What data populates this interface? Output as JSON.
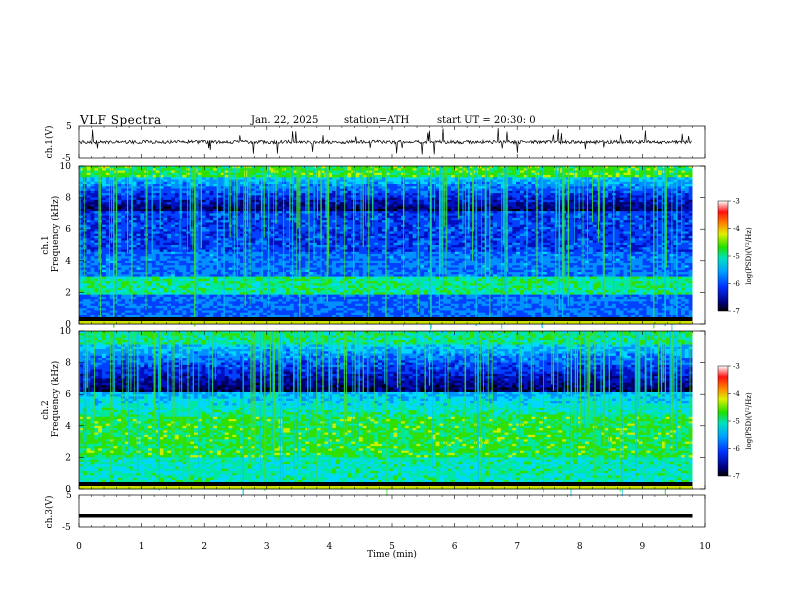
{
  "header": {
    "title": "VLF  Spectra",
    "date": "Jan. 22, 2025",
    "station": "station=ATH",
    "start": "start  UT  =   20:30: 0"
  },
  "chart_data": [
    {
      "type": "line",
      "panel": "ch1-waveform",
      "ylabel": "ch.1(V)",
      "ylim": [
        -5,
        5
      ],
      "yticks": [
        "5",
        "-5"
      ],
      "x_range_min": [
        0,
        9.8
      ],
      "description_values": "noisy waveform near 0 V with sharp spikes"
    },
    {
      "type": "heatmap",
      "panel": "ch1-spectrogram",
      "ylabel": "ch.1\nFrequency  (kHz)",
      "ylim_khz": [
        0,
        10
      ],
      "yticks": [
        "0",
        "2",
        "4",
        "6",
        "8",
        "10"
      ],
      "colorbar": {
        "label": "log(PSD)(V²/Hz)",
        "range": [
          -7,
          -3
        ],
        "ticks": [
          "-3",
          "-4",
          "-5",
          "-6",
          "-7"
        ]
      }
    },
    {
      "type": "heatmap",
      "panel": "ch2-spectrogram",
      "ylabel": "ch.2\nFrequency  (kHz)",
      "ylim_khz": [
        0,
        10
      ],
      "yticks": [
        "0",
        "2",
        "4",
        "6",
        "8",
        "10"
      ],
      "colorbar": {
        "label": "log(PSD)(V²/Hz)",
        "range": [
          -7,
          -3
        ],
        "ticks": [
          "-3",
          "-4",
          "-5",
          "-6",
          "-7"
        ]
      }
    },
    {
      "type": "line",
      "panel": "ch3-waveform",
      "ylabel": "ch.3(V)",
      "ylim": [
        -5,
        5
      ],
      "yticks": [
        "5",
        "-5"
      ],
      "constant_value_v": -1.5
    }
  ],
  "xaxis": {
    "label": "Time  (min)",
    "ticks": [
      "0",
      "1",
      "2",
      "3",
      "4",
      "5",
      "6",
      "7",
      "8",
      "9",
      "10"
    ],
    "range": [
      0,
      10
    ],
    "data_end_min": 9.8
  },
  "colorbar_label": "log(PSD)(V",
  "colorbar_label_sup": "2",
  "colorbar_label_tail": "/Hz)",
  "ch1_ylabel_a": "ch.1",
  "ch1_ylabel_b": "Frequency  (kHz)",
  "ch2_ylabel_a": "ch.2",
  "ch2_ylabel_b": "Frequency  (kHz)",
  "ch1v_label": "ch.1(V)",
  "ch3v_label": "ch.3(V)"
}
